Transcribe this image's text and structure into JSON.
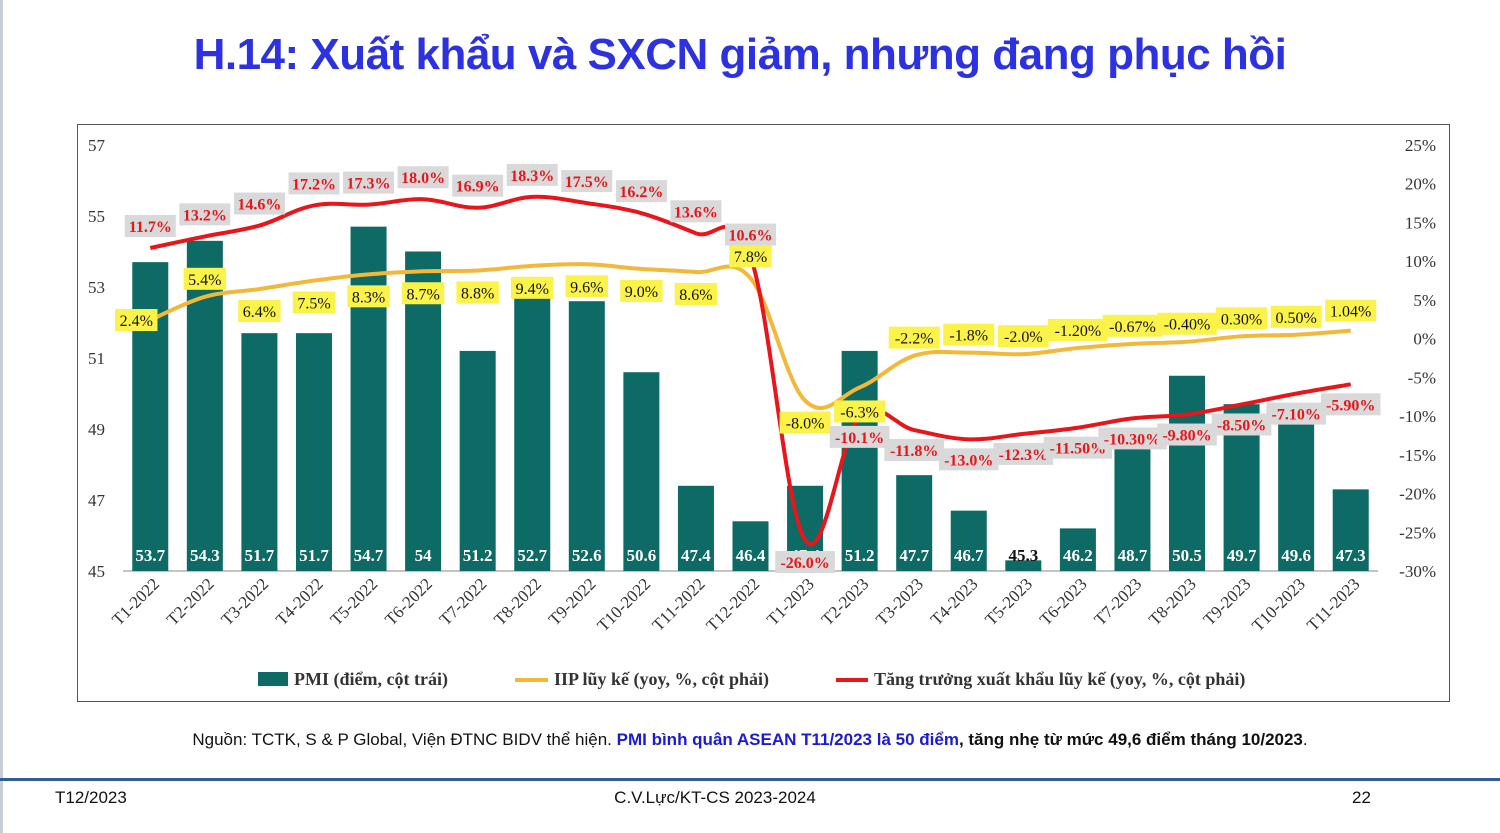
{
  "title": "H.14: Xuất khẩu và SXCN giảm, nhưng đang phục hồi",
  "source_note": {
    "prefix": "Nguồn: TCTK, S & P Global, Viện ĐTNC BIDV thể hiện. ",
    "highlight": "PMI bình quân ASEAN T11/2023 là 50 điểm",
    "suffix": ", tăng nhẹ từ mức 49,6 điểm tháng 10/2023",
    "end": "."
  },
  "footer": {
    "left": "T12/2023",
    "center": "C.V.Lực/KT-CS 2023-2024",
    "right": "22"
  },
  "colors": {
    "title": "#2d32e0",
    "pmi_bar": "#0e6a64",
    "iip_line": "#f2b83a",
    "export_line": "#e8151b",
    "iip_label_bg": "#fbf24a",
    "export_label_bg": "#d9d9d9",
    "footer_rule": "#2f5f98"
  },
  "chart_data": {
    "type": "bar",
    "categories": [
      "T1-2022",
      "T2-2022",
      "T3-2022",
      "T4-2022",
      "T5-2022",
      "T6-2022",
      "T7-2022",
      "T8-2022",
      "T9-2022",
      "T10-2022",
      "T11-2022",
      "T12-2022",
      "T1-2023",
      "T2-2023",
      "T3-2023",
      "T4-2023",
      "T5-2023",
      "T6-2023",
      "T7-2023",
      "T8-2023",
      "T9-2023",
      "T10-2023",
      "T11-2023"
    ],
    "left_axis": {
      "min": 45,
      "max": 57,
      "ticks": [
        "45",
        "47",
        "49",
        "51",
        "53",
        "55",
        "57"
      ]
    },
    "right_axis": {
      "min": -30,
      "max": 25,
      "ticks": [
        "-30%",
        "-25%",
        "-20%",
        "-15%",
        "-10%",
        "-5%",
        "0%",
        "5%",
        "10%",
        "15%",
        "20%",
        "25%"
      ]
    },
    "series": [
      {
        "name": "PMI (điểm, cột trái)",
        "kind": "bar",
        "axis": "left",
        "values": [
          53.7,
          54.3,
          51.7,
          51.7,
          54.7,
          54,
          51.2,
          52.7,
          52.6,
          50.6,
          47.4,
          46.4,
          47.4,
          51.2,
          47.7,
          46.7,
          45.3,
          46.2,
          48.7,
          50.5,
          49.7,
          49.6,
          47.3
        ],
        "labels": [
          "53.7",
          "54.3",
          "51.7",
          "51.7",
          "54.7",
          "54",
          "51.2",
          "52.7",
          "52.6",
          "50.6",
          "47.4",
          "46.4",
          "47.4",
          "51.2",
          "47.7",
          "46.7",
          "45.3",
          "46.2",
          "48.7",
          "50.5",
          "49.7",
          "49.6",
          "47.3"
        ]
      },
      {
        "name": "IIP lũy kế (yoy, %, cột phải)",
        "kind": "line",
        "axis": "right",
        "values": [
          2.4,
          5.4,
          6.4,
          7.5,
          8.3,
          8.7,
          8.8,
          9.4,
          9.6,
          9.0,
          8.6,
          7.8,
          -8.0,
          -6.3,
          -2.2,
          -1.8,
          -2.0,
          -1.2,
          -0.67,
          -0.4,
          0.3,
          0.5,
          1.04
        ],
        "labels": [
          "2.4%",
          "5.4%",
          "6.4%",
          "7.5%",
          "8.3%",
          "8.7%",
          "8.8%",
          "9.4%",
          "9.6%",
          "9.0%",
          "8.6%",
          "7.8%",
          "-8.0%",
          "-6.3%",
          "-2.2%",
          "-1.8%",
          "-2.0%",
          "-1.20%",
          "-0.67%",
          "-0.40%",
          "0.30%",
          "0.50%",
          "1.04%"
        ]
      },
      {
        "name": "Tăng trưởng xuất khẩu lũy kế (yoy, %, cột phải)",
        "kind": "line",
        "axis": "right",
        "values": [
          11.7,
          13.2,
          14.6,
          17.2,
          17.3,
          18.0,
          16.9,
          18.3,
          17.5,
          16.2,
          13.6,
          10.6,
          -26.0,
          -10.1,
          -11.8,
          -13.0,
          -12.3,
          -11.5,
          -10.3,
          -9.8,
          -8.5,
          -7.1,
          -5.9
        ],
        "labels": [
          "11.7%",
          "13.2%",
          "14.6%",
          "17.2%",
          "17.3%",
          "18.0%",
          "16.9%",
          "18.3%",
          "17.5%",
          "16.2%",
          "13.6%",
          "10.6%",
          "-26.0%",
          "-10.1%",
          "-11.8%",
          "-13.0%",
          "-12.3%",
          "-11.50%",
          "-10.30%",
          "-9.80%",
          "-8.50%",
          "-7.10%",
          "-5.90%"
        ]
      }
    ],
    "legend_position": "bottom",
    "grid": false
  }
}
